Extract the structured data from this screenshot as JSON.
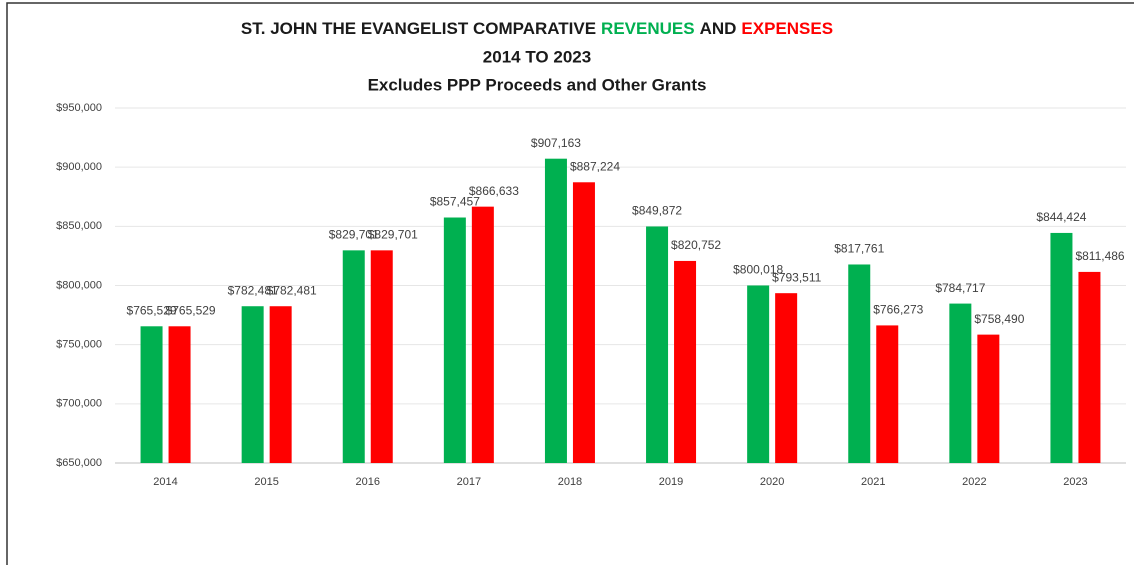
{
  "chart_data": {
    "type": "bar",
    "title": "ST. JOHN THE EVANGELIST COMPARATIVE",
    "title_joiner": "AND",
    "subtitle": [
      "2014 TO 2023",
      "Excludes PPP Proceeds and Other Grants"
    ],
    "categories": [
      "2014",
      "2015",
      "2016",
      "2017",
      "2018",
      "2019",
      "2020",
      "2021",
      "2022",
      "2023"
    ],
    "series": [
      {
        "name": "REVENUES",
        "color": "#00b050",
        "values": [
          765529,
          782481,
          829701,
          857457,
          907163,
          849872,
          800018,
          817761,
          784717,
          844424
        ],
        "value_labels": [
          "$765,529",
          "$782,481",
          "$829,701",
          "$857,457",
          "$907,163",
          "$849,872",
          "$800,018",
          "$817,761",
          "$784,717",
          "$844,424"
        ]
      },
      {
        "name": "EXPENSES",
        "color": "#ff0000",
        "values": [
          765529,
          782481,
          829701,
          866633,
          887224,
          820752,
          793511,
          766273,
          758490,
          811486
        ],
        "value_labels": [
          "$765,529",
          "$782,481",
          "$829,701",
          "$866,633",
          "$887,224",
          "$820,752",
          "$793,511",
          "$766,273",
          "$758,490",
          "$811,486"
        ]
      }
    ],
    "ylim": [
      650000,
      950000
    ],
    "yticks": [
      {
        "value": 650000,
        "label": "$650,000"
      },
      {
        "value": 700000,
        "label": "$700,000"
      },
      {
        "value": 750000,
        "label": "$750,000"
      },
      {
        "value": 800000,
        "label": "$800,000"
      },
      {
        "value": 850000,
        "label": "$850,000"
      },
      {
        "value": 900000,
        "label": "$900,000"
      },
      {
        "value": 950000,
        "label": "$950,000"
      }
    ],
    "grid": true
  }
}
